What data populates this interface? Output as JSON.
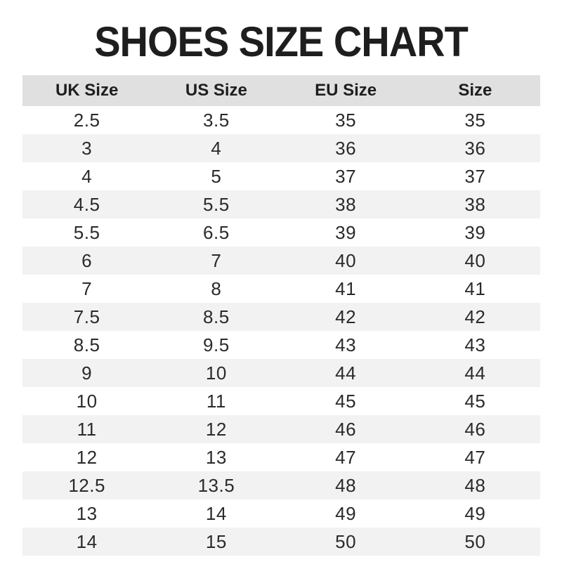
{
  "page": {
    "title": "SHOES SIZE CHART"
  },
  "colors": {
    "text": "#1e1e1e",
    "header_background": "#e0e0e0",
    "stripe_background": "#f2f2f2"
  },
  "chart_data": {
    "type": "table",
    "title": "SHOES SIZE CHART",
    "headers": [
      "UK Size",
      "US Size",
      "EU Size",
      "Size"
    ],
    "rows": [
      [
        "2.5",
        "3.5",
        "35",
        "35"
      ],
      [
        "3",
        "4",
        "36",
        "36"
      ],
      [
        "4",
        "5",
        "37",
        "37"
      ],
      [
        "4.5",
        "5.5",
        "38",
        "38"
      ],
      [
        "5.5",
        "6.5",
        "39",
        "39"
      ],
      [
        "6",
        "7",
        "40",
        "40"
      ],
      [
        "7",
        "8",
        "41",
        "41"
      ],
      [
        "7.5",
        "8.5",
        "42",
        "42"
      ],
      [
        "8.5",
        "9.5",
        "43",
        "43"
      ],
      [
        "9",
        "10",
        "44",
        "44"
      ],
      [
        "10",
        "11",
        "45",
        "45"
      ],
      [
        "11",
        "12",
        "46",
        "46"
      ],
      [
        "12",
        "13",
        "47",
        "47"
      ],
      [
        "12.5",
        "13.5",
        "48",
        "48"
      ],
      [
        "13",
        "14",
        "49",
        "49"
      ],
      [
        "14",
        "15",
        "50",
        "50"
      ]
    ],
    "layout": {
      "striped": true,
      "stripe_pattern": "even-rows-gray",
      "header_background": "#e0e0e0",
      "stripe_background": "#f2f2f2",
      "alignment": "center"
    }
  }
}
